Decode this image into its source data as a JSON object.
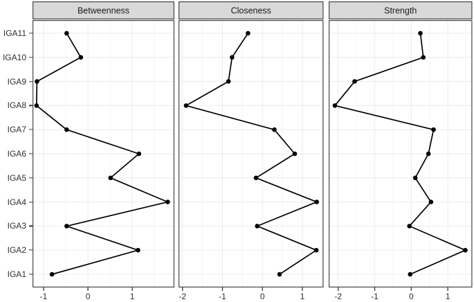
{
  "chart_data": {
    "type": "line",
    "orientation": "horizontal_profile",
    "title": "",
    "xlabel": "",
    "ylabel": "",
    "legend_position": "none",
    "grid": true,
    "categories_top_to_bottom": [
      "IGA11",
      "IGA10",
      "IGA9",
      "IGA8",
      "IGA7",
      "IGA6",
      "IGA5",
      "IGA4",
      "IGA3",
      "IGA2",
      "IGA1"
    ],
    "panels": [
      {
        "title": "Betweenness",
        "xlim": [
          -1.25,
          1.95
        ],
        "xticks": [
          -1,
          0,
          1
        ],
        "xtick_labels": [
          "-1",
          "0",
          "1"
        ],
        "values": [
          -0.48,
          -0.16,
          -1.15,
          -1.16,
          -0.48,
          1.15,
          0.51,
          1.8,
          -0.48,
          1.13,
          -0.81
        ]
      },
      {
        "title": "Closeness",
        "xlim": [
          -2.1,
          1.53
        ],
        "xticks": [
          -2,
          -1,
          0,
          1
        ],
        "xtick_labels": [
          "-2",
          "-1",
          "0",
          "1"
        ],
        "values": [
          -0.36,
          -0.76,
          -0.85,
          -1.91,
          0.3,
          0.81,
          -0.16,
          1.36,
          -0.13,
          1.35,
          0.43
        ]
      },
      {
        "title": "Strength",
        "xlim": [
          -2.26,
          1.67
        ],
        "xticks": [
          -2,
          -1,
          0,
          1
        ],
        "xtick_labels": [
          "-2",
          "-1",
          "0",
          "1"
        ],
        "values": [
          0.25,
          0.33,
          -1.55,
          -2.09,
          0.61,
          0.47,
          0.11,
          0.54,
          -0.05,
          1.48,
          -0.03
        ]
      }
    ]
  },
  "colors": {
    "strip_fill": "#d9d9d9",
    "strip_text": "#1a1a1a",
    "border": "#454545",
    "grid_major": "#ebebeb",
    "grid_minor": "#f5f5f5",
    "line": "#000000",
    "point": "#000000",
    "axis_text": "#2e2e2e",
    "tick_mark": "#333333",
    "panel_bg": "#ffffff"
  }
}
